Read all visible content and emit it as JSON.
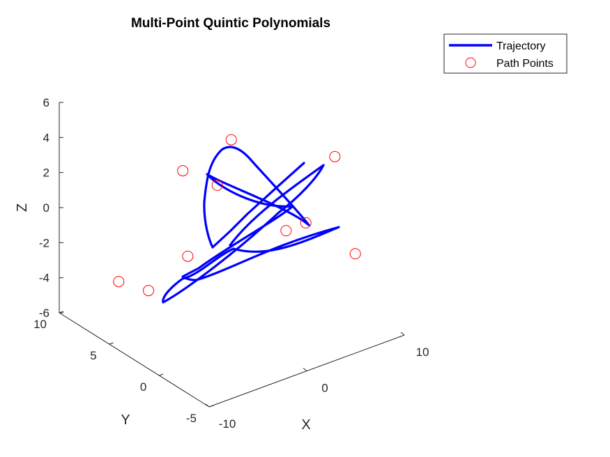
{
  "chart_data": {
    "type": "line",
    "title": "Multi-Point Quintic Polynomials",
    "xlabel": "X",
    "ylabel": "Y",
    "zlabel": "Z",
    "xlim": [
      -10,
      10
    ],
    "ylim": [
      -5,
      10
    ],
    "zlim": [
      -6,
      6
    ],
    "x_ticks": [
      "-10",
      "0",
      "10"
    ],
    "y_ticks": [
      "-5",
      "0",
      "5",
      "10"
    ],
    "z_ticks": [
      "-6",
      "-4",
      "-2",
      "0",
      "2",
      "4",
      "6"
    ],
    "legend_placement": "top-right",
    "series": [
      {
        "name": "Trajectory",
        "color": "#0000ff",
        "style": "line"
      },
      {
        "name": "Path Points",
        "color": "#ff0000",
        "style": "open-circle",
        "points": [
          {
            "x": -2.0,
            "y": 2.0,
            "z": 2.5
          },
          {
            "x": 2.5,
            "y": 5.0,
            "z": 3.1
          },
          {
            "x": 8.0,
            "y": 0.0,
            "z": 2.8
          },
          {
            "x": 4.0,
            "y": -1.0,
            "z": 0.2
          },
          {
            "x": 3.0,
            "y": 0.0,
            "z": -0.4
          },
          {
            "x": 6.0,
            "y": -4.0,
            "z": -0.9
          },
          {
            "x": -4.0,
            "y": 3.0,
            "z": -1.5
          },
          {
            "x": -7.0,
            "y": 4.0,
            "z": -3.2
          },
          {
            "x": -8.0,
            "y": 6.0,
            "z": -3.2
          },
          {
            "x": -4.0,
            "y": 3.5,
            "z": 3.2
          }
        ]
      }
    ]
  }
}
